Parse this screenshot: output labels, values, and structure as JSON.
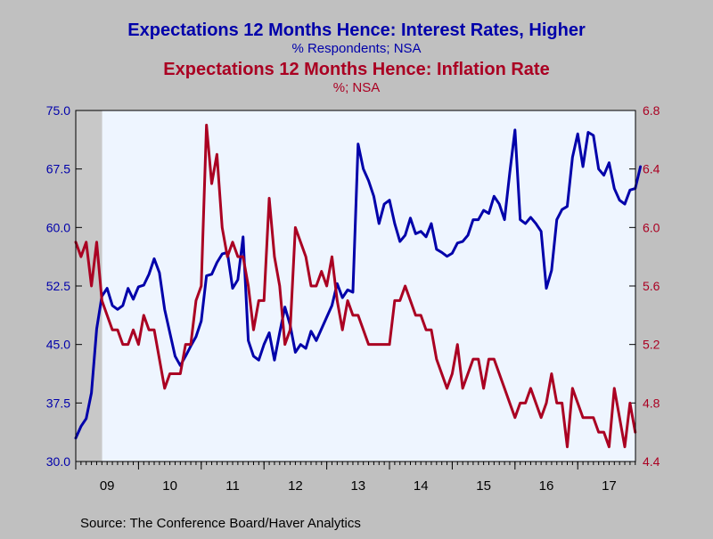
{
  "chart_data": {
    "type": "line",
    "titles": [
      {
        "title": "Expectations 12 Months Hence: Interest Rates, Higher",
        "subtitle": "% Respondents; NSA",
        "color": "#0000aa"
      },
      {
        "title": "Expectations 12 Months Hence: Inflation Rate",
        "subtitle": "%; NSA",
        "color": "#aa0022"
      }
    ],
    "source": "Source:  The Conference Board/Haver Analytics",
    "x_range": [
      2009.0,
      2017.92
    ],
    "x_tick_labels": [
      {
        "label": "09",
        "x": 2009.5
      },
      {
        "label": "10",
        "x": 2010.5
      },
      {
        "label": "11",
        "x": 2011.5
      },
      {
        "label": "12",
        "x": 2012.5
      },
      {
        "label": "13",
        "x": 2013.5
      },
      {
        "label": "14",
        "x": 2014.5
      },
      {
        "label": "15",
        "x": 2015.5
      },
      {
        "label": "16",
        "x": 2016.5
      },
      {
        "label": "17",
        "x": 2017.5
      }
    ],
    "left_axis": {
      "range": [
        30.0,
        75.0
      ],
      "ticks": [
        "30.0",
        "37.5",
        "45.0",
        "52.5",
        "60.0",
        "67.5",
        "75.0"
      ],
      "tick_values": [
        30.0,
        37.5,
        45.0,
        52.5,
        60.0,
        67.5,
        75.0
      ],
      "color": "#0000aa"
    },
    "right_axis": {
      "range": [
        4.4,
        6.8
      ],
      "ticks": [
        "4.4",
        "4.8",
        "5.2",
        "5.6",
        "6.0",
        "6.4",
        "6.8"
      ],
      "tick_values": [
        4.4,
        4.8,
        5.2,
        5.6,
        6.0,
        6.4,
        6.8
      ],
      "color": "#aa0022"
    },
    "recession_shading": [
      [
        2009.0,
        2009.42
      ]
    ],
    "series": [
      {
        "axis": "left",
        "color": "#0000aa",
        "start": 2009.0,
        "step": 0.08333,
        "values": [
          33.0,
          34.5,
          35.5,
          38.8,
          47.0,
          51.2,
          52.2,
          50.0,
          49.5,
          50.0,
          52.2,
          50.8,
          52.4,
          52.6,
          54.0,
          56.0,
          54.2,
          49.5,
          46.5,
          43.5,
          42.3,
          43.5,
          44.8,
          46.0,
          48.0,
          53.8,
          54.0,
          55.5,
          56.6,
          56.8,
          52.2,
          53.3,
          58.8,
          45.5,
          43.5,
          43.0,
          45.0,
          46.5,
          43.0,
          46.5,
          49.8,
          47.5,
          44.0,
          45.0,
          44.5,
          46.7,
          45.5,
          47.0,
          48.5,
          50.0,
          52.8,
          51.0,
          52.0,
          51.7,
          70.7,
          67.5,
          66.0,
          64.0,
          60.5,
          63.0,
          63.5,
          60.5,
          58.2,
          59.0,
          61.2,
          59.2,
          59.5,
          58.8,
          60.5,
          57.2,
          56.8,
          56.3,
          56.7,
          58.0,
          58.2,
          59.0,
          61.0,
          61.0,
          62.2,
          61.8,
          64.0,
          63.0,
          61.0,
          67.0,
          72.5,
          61.0,
          60.5,
          61.3,
          60.5,
          59.5,
          52.2,
          54.5,
          61.0,
          62.3,
          62.7,
          69.0,
          72.0,
          67.8,
          72.2,
          71.8,
          67.5,
          66.7,
          68.3,
          65.0,
          63.5,
          63.0,
          64.8,
          65.0,
          67.8
        ]
      },
      {
        "axis": "right",
        "color": "#aa0022",
        "start": 2009.0,
        "step": 0.08333,
        "values": [
          5.9,
          5.8,
          5.9,
          5.6,
          5.9,
          5.5,
          5.4,
          5.3,
          5.3,
          5.2,
          5.2,
          5.3,
          5.2,
          5.4,
          5.3,
          5.3,
          5.1,
          4.9,
          5.0,
          5.0,
          5.0,
          5.2,
          5.2,
          5.5,
          5.6,
          6.7,
          6.3,
          6.5,
          6.0,
          5.8,
          5.9,
          5.8,
          5.8,
          5.6,
          5.3,
          5.5,
          5.5,
          6.2,
          5.8,
          5.6,
          5.2,
          5.3,
          6.0,
          5.9,
          5.8,
          5.6,
          5.6,
          5.7,
          5.6,
          5.8,
          5.5,
          5.3,
          5.5,
          5.4,
          5.4,
          5.3,
          5.2,
          5.2,
          5.2,
          5.2,
          5.2,
          5.5,
          5.5,
          5.6,
          5.5,
          5.4,
          5.4,
          5.3,
          5.3,
          5.1,
          5.0,
          4.9,
          5.0,
          5.2,
          4.9,
          5.0,
          5.1,
          5.1,
          4.9,
          5.1,
          5.1,
          5.0,
          4.9,
          4.8,
          4.7,
          4.8,
          4.8,
          4.9,
          4.8,
          4.7,
          4.8,
          5.0,
          4.8,
          4.8,
          4.5,
          4.9,
          4.8,
          4.7,
          4.7,
          4.7,
          4.6,
          4.6,
          4.5,
          4.9,
          4.7,
          4.5,
          4.8,
          4.6
        ]
      }
    ]
  }
}
